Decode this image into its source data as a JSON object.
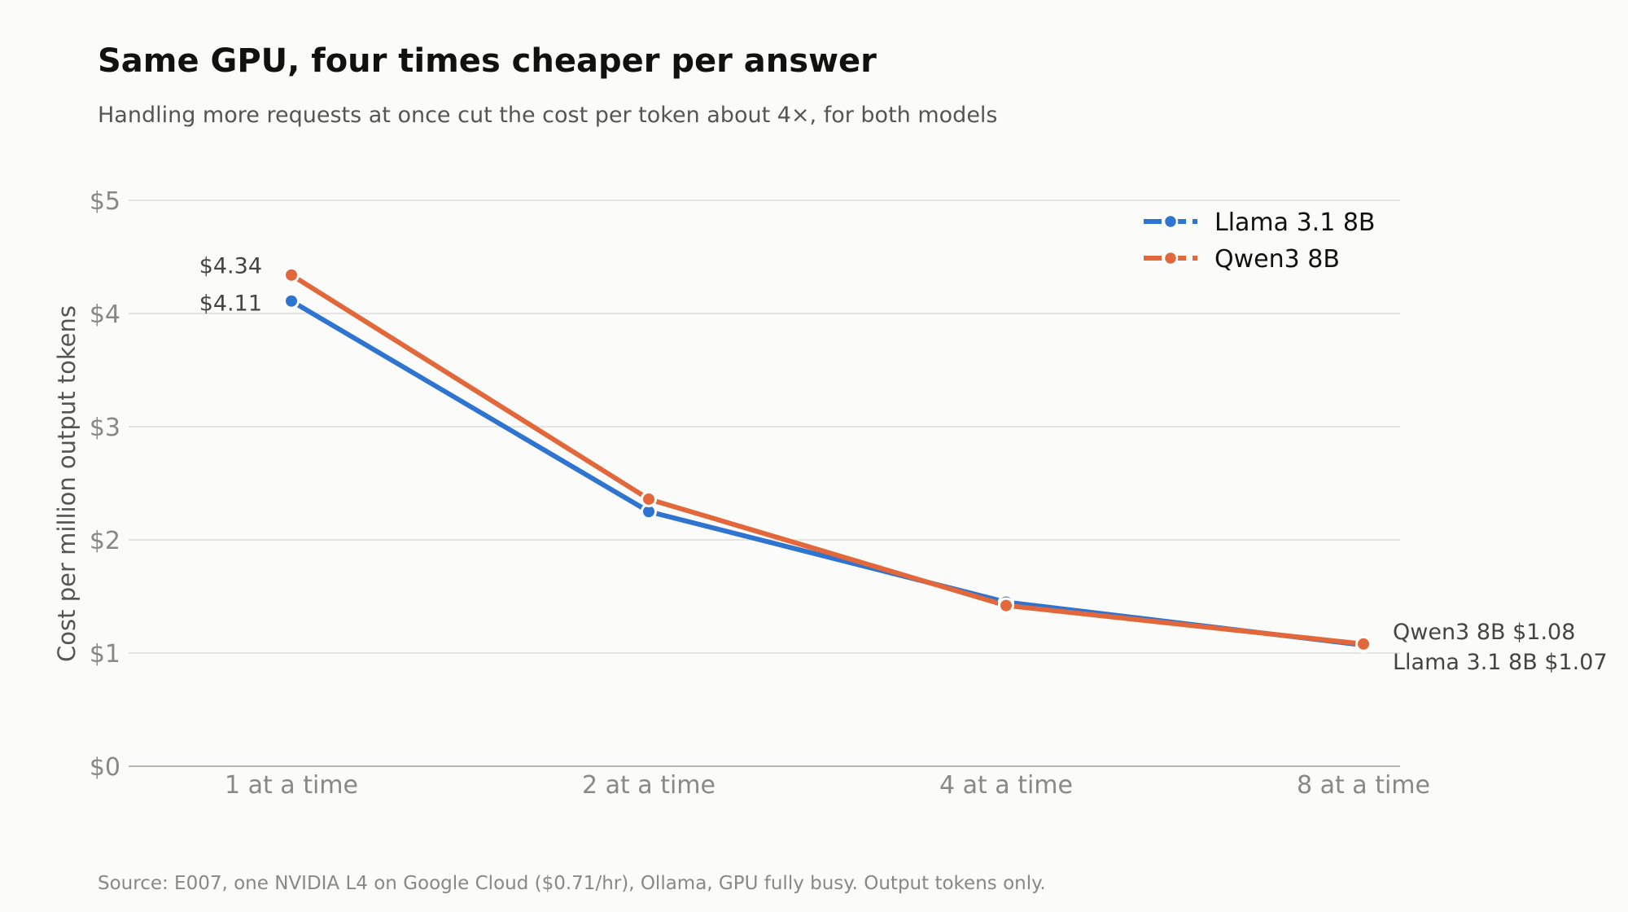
{
  "header": {
    "title": "Same GPU, four times cheaper per answer",
    "subtitle": "Handling more requests at once cut the cost per token about 4×, for both models"
  },
  "footer": {
    "source": "Source: E007, one NVIDIA L4 on Google Cloud ($0.71/hr), Ollama, GPU fully busy. Output tokens only."
  },
  "colors": {
    "llama": "#2e74d0",
    "qwen": "#e2673a",
    "grid": "#dddddd",
    "baseline": "#b8b8b0",
    "background": "#fbfbf9"
  },
  "chart_data": {
    "type": "line",
    "title": "Same GPU, four times cheaper per answer",
    "subtitle": "Handling more requests at once cut the cost per token about 4×, for both models",
    "xlabel": "",
    "ylabel": "Cost per million output tokens",
    "categories": [
      "1 at a time",
      "2 at a time",
      "4 at a time",
      "8 at a time"
    ],
    "y_ticks": [
      0,
      1,
      2,
      3,
      4,
      5
    ],
    "y_tick_labels": [
      "$0",
      "$1",
      "$2",
      "$3",
      "$4",
      "$5"
    ],
    "ylim": [
      0,
      5
    ],
    "grid": true,
    "legend": "top-right",
    "series": [
      {
        "name": "Llama 3.1 8B",
        "color": "#2e74d0",
        "values": [
          4.11,
          2.25,
          1.45,
          1.07
        ],
        "start_label": "$4.11",
        "end_label": "Llama 3.1 8B  $1.07"
      },
      {
        "name": "Qwen3 8B",
        "color": "#e2673a",
        "values": [
          4.34,
          2.36,
          1.42,
          1.08
        ],
        "start_label": "$4.34",
        "end_label": "Qwen3 8B  $1.08"
      }
    ]
  }
}
